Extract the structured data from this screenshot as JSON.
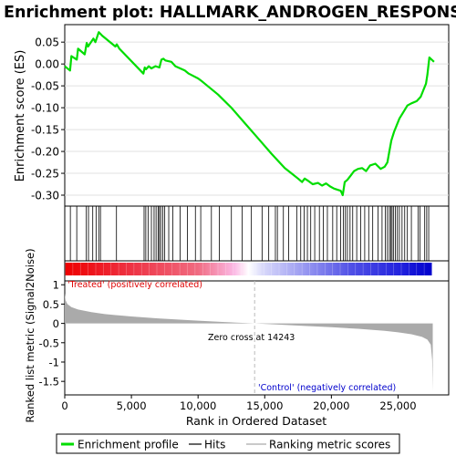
{
  "title": "Enrichment plot: HALLMARK_ANDROGEN_RESPONSE",
  "colors": {
    "es_line": "#00dd00",
    "hits": "#000000",
    "metric": "#aaaaaa",
    "zero_cross_line": "#bbbbbb",
    "treated_text": "#dd0000",
    "control_text": "#0000cc",
    "heat_pos": "#ee0000",
    "heat_mid": "#ffffff",
    "heat_neg": "#0000ee"
  },
  "chart_data": [
    {
      "type": "line",
      "name": "enrichment-plot",
      "ylabel": "Enrichment score (ES)",
      "xlim": [
        0,
        28800
      ],
      "ylim": [
        -0.325,
        0.09
      ],
      "yticks": [
        0.05,
        0.0,
        -0.05,
        -0.1,
        -0.15,
        -0.2,
        -0.25,
        -0.3
      ],
      "ytick_labels": [
        "0.05",
        "0.00",
        "-0.05",
        "-0.10",
        "-0.15",
        "-0.20",
        "-0.25",
        "-0.30"
      ],
      "grid": true,
      "series": [
        {
          "name": "Enrichment profile",
          "x": [
            0,
            400,
            500,
            900,
            1000,
            1500,
            1650,
            1750,
            2150,
            2300,
            2550,
            2700,
            2800,
            3800,
            3900,
            4100,
            5900,
            6000,
            6100,
            6300,
            6500,
            6800,
            7100,
            7250,
            7400,
            7550,
            8000,
            8300,
            9000,
            9300,
            10000,
            10300,
            11500,
            12500,
            13500,
            14500,
            15500,
            16500,
            17000,
            17500,
            17800,
            18000,
            18300,
            18600,
            19000,
            19300,
            19600,
            19900,
            20200,
            20700,
            20850,
            21000,
            21200,
            21450,
            21700,
            22000,
            22300,
            22600,
            22900,
            23300,
            23700,
            24000,
            24200,
            24350,
            24500,
            24700,
            24900,
            25100,
            25400,
            25700,
            26000,
            26400,
            26700,
            26900,
            27100,
            27200,
            27350,
            27700
          ],
          "y": [
            -0.005,
            -0.015,
            0.018,
            0.01,
            0.035,
            0.022,
            0.048,
            0.04,
            0.058,
            0.05,
            0.073,
            0.068,
            0.065,
            0.04,
            0.045,
            0.035,
            -0.022,
            -0.008,
            -0.012,
            -0.005,
            -0.01,
            -0.005,
            -0.008,
            0.01,
            0.012,
            0.008,
            0.005,
            -0.005,
            -0.015,
            -0.022,
            -0.033,
            -0.04,
            -0.07,
            -0.1,
            -0.135,
            -0.17,
            -0.205,
            -0.238,
            -0.25,
            -0.262,
            -0.27,
            -0.262,
            -0.268,
            -0.275,
            -0.272,
            -0.278,
            -0.273,
            -0.28,
            -0.285,
            -0.29,
            -0.3,
            -0.27,
            -0.265,
            -0.255,
            -0.245,
            -0.24,
            -0.238,
            -0.245,
            -0.232,
            -0.228,
            -0.24,
            -0.235,
            -0.225,
            -0.2,
            -0.175,
            -0.155,
            -0.14,
            -0.125,
            -0.11,
            -0.095,
            -0.09,
            -0.085,
            -0.075,
            -0.06,
            -0.045,
            -0.025,
            0.015,
            0.005
          ]
        }
      ]
    },
    {
      "type": "scatter",
      "name": "hits",
      "series": [
        {
          "name": "Hits",
          "x": [
            420,
            900,
            1620,
            1780,
            2100,
            2350,
            2550,
            2680,
            3880,
            5950,
            6080,
            6250,
            6500,
            6700,
            6850,
            7000,
            7100,
            7200,
            7350,
            7500,
            7800,
            8100,
            8650,
            9200,
            9800,
            10200,
            11000,
            11600,
            12500,
            13300,
            14000,
            14800,
            15300,
            15800,
            15950,
            16400,
            16800,
            17400,
            17700,
            17950,
            18200,
            18450,
            18750,
            19100,
            19400,
            19700,
            20100,
            20400,
            20700,
            20900,
            21050,
            21200,
            21400,
            21600,
            21900,
            22200,
            22500,
            22800,
            23100,
            23500,
            23800,
            24050,
            24200,
            24350,
            24450,
            24550,
            24650,
            24800,
            24950,
            25100,
            25300,
            25500,
            25700,
            26000,
            26500,
            26650,
            27000,
            27150,
            27300
          ]
        }
      ]
    },
    {
      "type": "area",
      "name": "ranked-list-metric",
      "xlabel": "Rank in Ordered Dataset",
      "ylabel": "Ranked list metric (Signal2Noise)",
      "xlim": [
        0,
        28800
      ],
      "ylim": [
        -1.85,
        1.1
      ],
      "xticks": [
        0,
        5000,
        10000,
        15000,
        20000,
        25000
      ],
      "xtick_labels": [
        "0",
        "5,000",
        "10,000",
        "15,000",
        "20,000",
        "25,000"
      ],
      "yticks": [
        1.0,
        0.5,
        0.0,
        -0.5,
        -1.0,
        -1.5
      ],
      "ytick_labels": [
        "1",
        "0.5",
        "0",
        "-0.5",
        "-1",
        "-1.5"
      ],
      "zero_cross_label": "Zero cross at 14243",
      "zero_cross": 14243,
      "treated_label": "'Treated' (positively correlated)",
      "control_label": "'Control' (negatively correlated)",
      "series": [
        {
          "name": "Ranked list metric",
          "x": [
            0,
            60,
            200,
            500,
            1000,
            2000,
            3000,
            5000,
            7000,
            10000,
            12000,
            14243,
            16000,
            18000,
            20000,
            22000,
            24000,
            25000,
            26000,
            26800,
            27200,
            27450,
            27560,
            27600
          ],
          "y": [
            0.78,
            0.6,
            0.5,
            0.42,
            0.36,
            0.29,
            0.24,
            0.18,
            0.13,
            0.07,
            0.035,
            0.0,
            -0.03,
            -0.065,
            -0.1,
            -0.14,
            -0.19,
            -0.23,
            -0.28,
            -0.35,
            -0.42,
            -0.55,
            -0.95,
            -1.75
          ]
        }
      ]
    }
  ],
  "legend": {
    "items": [
      {
        "label": "Enrichment profile",
        "color": "#00dd00",
        "style": "thick"
      },
      {
        "label": "Hits",
        "color": "#000000",
        "style": "thin"
      },
      {
        "label": "Ranking metric scores",
        "color": "#aaaaaa",
        "style": "thin"
      }
    ]
  }
}
